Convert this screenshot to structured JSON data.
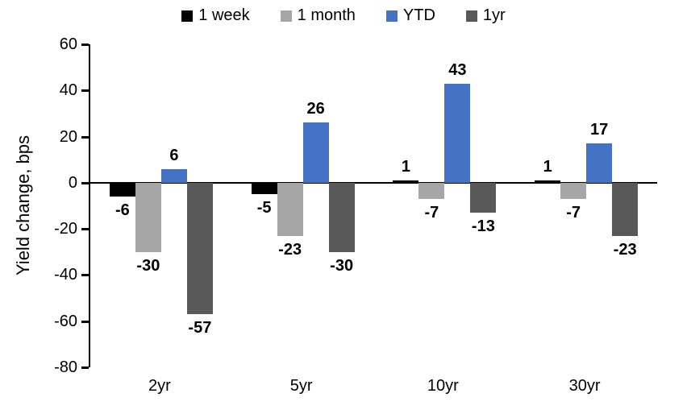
{
  "chart_data": {
    "type": "bar",
    "title": "",
    "xlabel": "",
    "ylabel": "Yield change, bps",
    "categories": [
      "2yr",
      "5yr",
      "10yr",
      "30yr"
    ],
    "series": [
      {
        "name": "1 week",
        "color": "#000000",
        "values": [
          -6,
          -5,
          1,
          1
        ]
      },
      {
        "name": "1 month",
        "color": "#A6A6A6",
        "values": [
          -30,
          -23,
          -7,
          -7
        ]
      },
      {
        "name": "YTD",
        "color": "#4472C4",
        "values": [
          6,
          26,
          43,
          17
        ]
      },
      {
        "name": "1yr",
        "color": "#595959",
        "values": [
          -57,
          -30,
          -13,
          -23
        ]
      }
    ],
    "ylim": [
      -80,
      60
    ],
    "yticks": [
      60,
      40,
      20,
      0,
      -20,
      -40,
      -60,
      -80
    ],
    "grid": false,
    "data_labels": true,
    "legend_position": "top"
  }
}
